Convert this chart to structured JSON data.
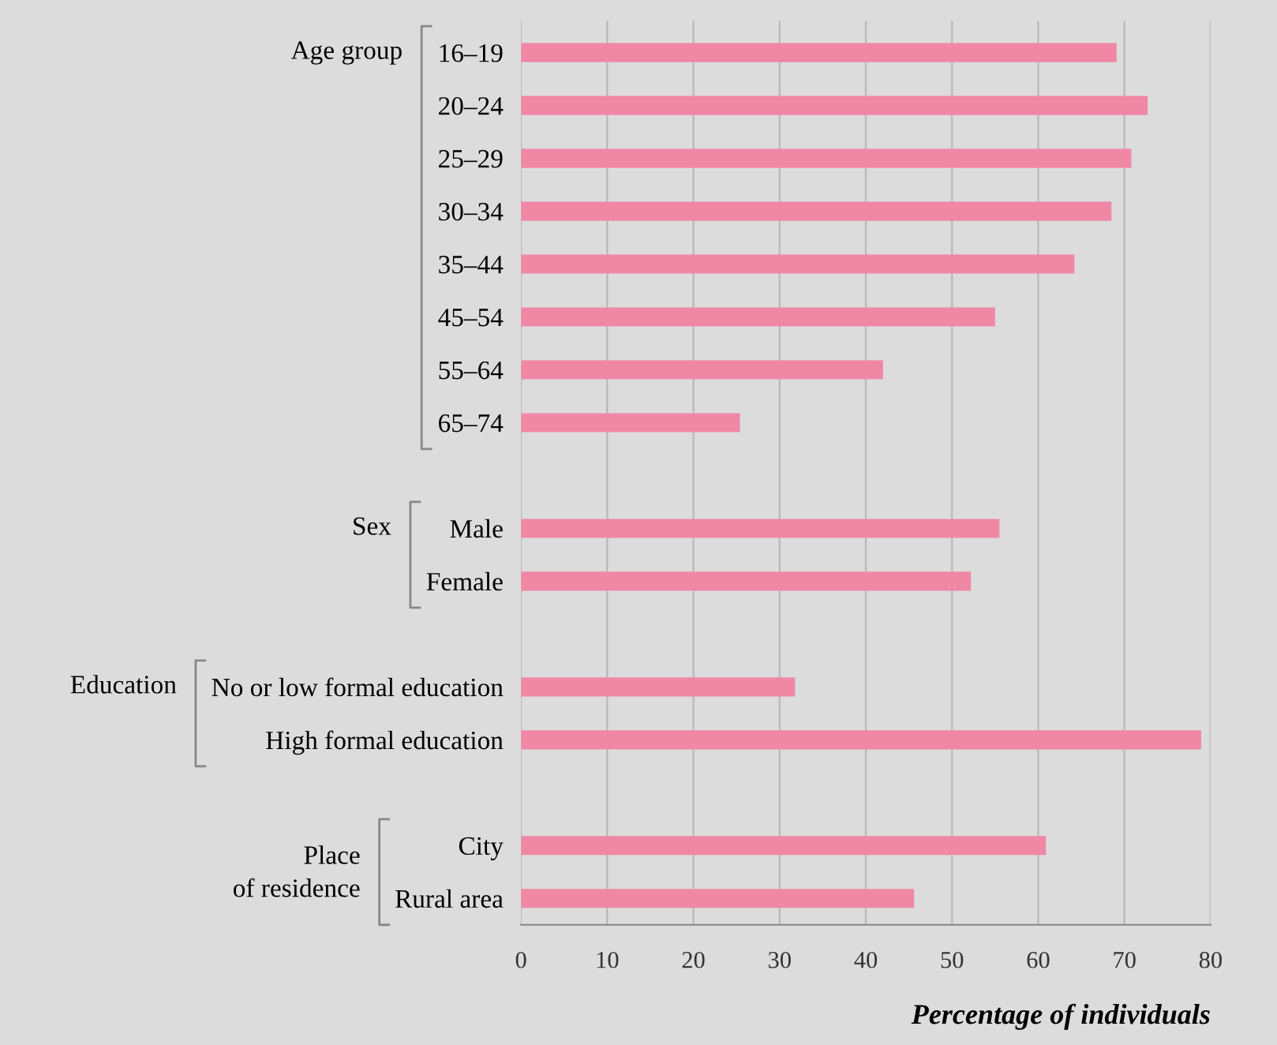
{
  "chart_data": {
    "type": "bar",
    "orientation": "horizontal",
    "xlabel": "Percentage of individuals",
    "categories": [
      "16–19",
      "20–24",
      "25–29",
      "30–34",
      "35–44",
      "45–54",
      "55–64",
      "65–74",
      null,
      "Male",
      "Female",
      null,
      "No or low formal education",
      "High formal education",
      null,
      "City",
      "Rural area"
    ],
    "values": [
      69.1,
      72.7,
      70.8,
      68.5,
      64.2,
      55.0,
      42.0,
      25.4,
      null,
      55.5,
      52.2,
      null,
      31.8,
      78.9,
      null,
      60.9,
      45.6
    ],
    "color": "#f088a5",
    "xlim": [
      0,
      80
    ],
    "xticks": [
      0,
      10,
      20,
      30,
      40,
      50,
      60,
      70,
      80
    ],
    "grid": "x",
    "annotations": [
      "Age group",
      "Sex",
      "Education",
      "Place\nof residence"
    ]
  }
}
